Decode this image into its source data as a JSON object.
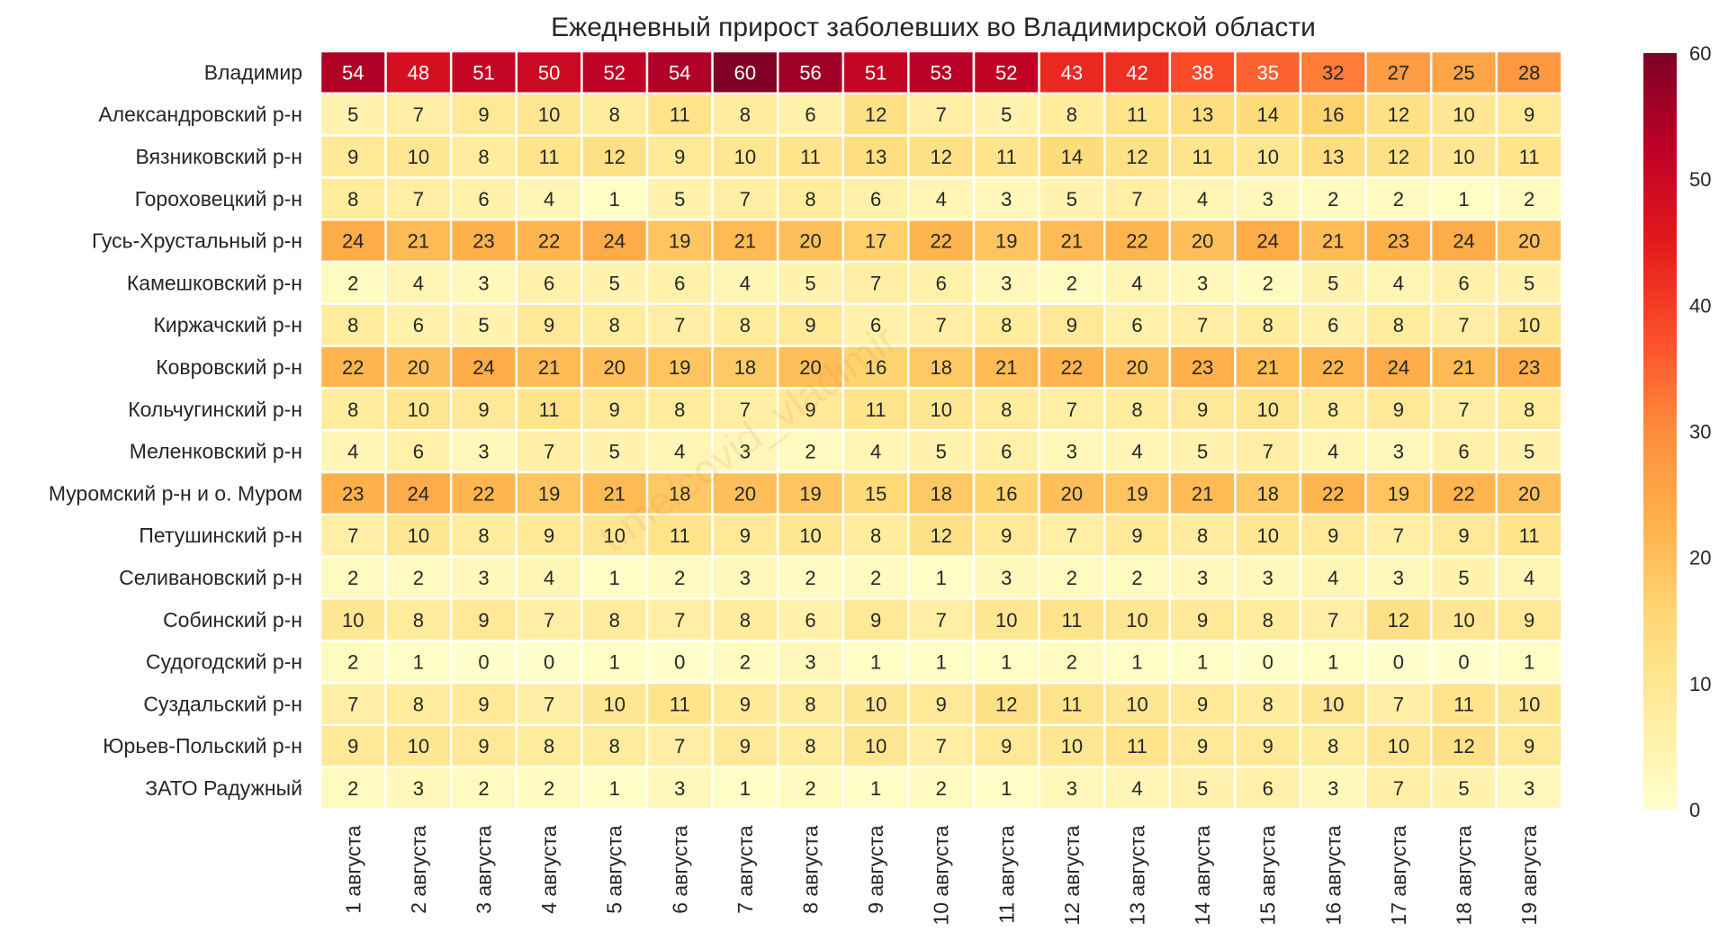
{
  "chart_data": {
    "type": "heatmap",
    "title": "Ежедневный прирост заболевших во Владимирской области",
    "rows": [
      "Владимир",
      "Александровский р-н",
      "Вязниковский р-н",
      "Гороховецкий р-н",
      "Гусь-Хрустальный р-н",
      "Камешковский р-н",
      "Киржачский р-н",
      "Ковровский р-н",
      "Кольчугинский р-н",
      "Меленковский р-н",
      "Муромский р-н и о. Муром",
      "Петушинский р-н",
      "Селивановский р-н",
      "Собинский р-н",
      "Судогодский р-н",
      "Суздальский р-н",
      "Юрьев-Польский р-н",
      "ЗАТО Радужный"
    ],
    "columns": [
      "1 августа",
      "2 августа",
      "3 августа",
      "4 августа",
      "5 августа",
      "6 августа",
      "7 августа",
      "8 августа",
      "9 августа",
      "10 августа",
      "11 августа",
      "12 августа",
      "13 августа",
      "14 августа",
      "15 августа",
      "16 августа",
      "17 августа",
      "18 августа",
      "19 августа"
    ],
    "values": [
      [
        54,
        48,
        51,
        50,
        52,
        54,
        60,
        56,
        51,
        53,
        52,
        43,
        42,
        38,
        35,
        32,
        27,
        25,
        28
      ],
      [
        5,
        7,
        9,
        10,
        8,
        11,
        8,
        6,
        12,
        7,
        5,
        8,
        11,
        13,
        14,
        16,
        12,
        10,
        9
      ],
      [
        9,
        10,
        8,
        11,
        12,
        9,
        10,
        11,
        13,
        12,
        11,
        14,
        12,
        11,
        10,
        13,
        12,
        10,
        11
      ],
      [
        8,
        7,
        6,
        4,
        1,
        5,
        7,
        8,
        6,
        4,
        3,
        5,
        7,
        4,
        3,
        2,
        2,
        1,
        2
      ],
      [
        24,
        21,
        23,
        22,
        24,
        19,
        21,
        20,
        17,
        22,
        19,
        21,
        22,
        20,
        24,
        21,
        23,
        24,
        20
      ],
      [
        2,
        4,
        3,
        6,
        5,
        6,
        4,
        5,
        7,
        6,
        3,
        2,
        4,
        3,
        2,
        5,
        4,
        6,
        5
      ],
      [
        8,
        6,
        5,
        9,
        8,
        7,
        8,
        9,
        6,
        7,
        8,
        9,
        6,
        7,
        8,
        6,
        8,
        7,
        10
      ],
      [
        22,
        20,
        24,
        21,
        20,
        19,
        18,
        20,
        16,
        18,
        21,
        22,
        20,
        23,
        21,
        22,
        24,
        21,
        23
      ],
      [
        8,
        10,
        9,
        11,
        9,
        8,
        7,
        9,
        11,
        10,
        8,
        7,
        8,
        9,
        10,
        8,
        9,
        7,
        8
      ],
      [
        4,
        6,
        3,
        7,
        5,
        4,
        3,
        2,
        4,
        5,
        6,
        3,
        4,
        5,
        7,
        4,
        3,
        6,
        5
      ],
      [
        23,
        24,
        22,
        19,
        21,
        18,
        20,
        19,
        15,
        18,
        16,
        20,
        19,
        21,
        18,
        22,
        19,
        22,
        20
      ],
      [
        7,
        10,
        8,
        9,
        10,
        11,
        9,
        10,
        8,
        12,
        9,
        7,
        9,
        8,
        10,
        9,
        7,
        9,
        11
      ],
      [
        2,
        2,
        3,
        4,
        1,
        2,
        3,
        2,
        2,
        1,
        3,
        2,
        2,
        3,
        3,
        4,
        3,
        5,
        4
      ],
      [
        10,
        8,
        9,
        7,
        8,
        7,
        8,
        6,
        9,
        7,
        10,
        11,
        10,
        9,
        8,
        7,
        12,
        10,
        9
      ],
      [
        2,
        1,
        0,
        0,
        1,
        0,
        2,
        3,
        1,
        1,
        1,
        2,
        1,
        1,
        0,
        1,
        0,
        0,
        1
      ],
      [
        7,
        8,
        9,
        7,
        10,
        11,
        9,
        8,
        10,
        9,
        12,
        11,
        10,
        9,
        8,
        10,
        7,
        11,
        10
      ],
      [
        9,
        10,
        9,
        8,
        8,
        7,
        9,
        8,
        10,
        7,
        9,
        10,
        11,
        9,
        9,
        8,
        10,
        12,
        9
      ],
      [
        2,
        3,
        2,
        2,
        1,
        3,
        1,
        2,
        1,
        2,
        1,
        3,
        4,
        5,
        6,
        3,
        7,
        5,
        3
      ]
    ],
    "colorbar": {
      "min": 0,
      "max": 60,
      "ticks": [
        0,
        10,
        20,
        30,
        40,
        50,
        60
      ]
    },
    "colormap": "YlOrRd",
    "annotated": true
  },
  "watermark": "t.me/covid_vladimir"
}
